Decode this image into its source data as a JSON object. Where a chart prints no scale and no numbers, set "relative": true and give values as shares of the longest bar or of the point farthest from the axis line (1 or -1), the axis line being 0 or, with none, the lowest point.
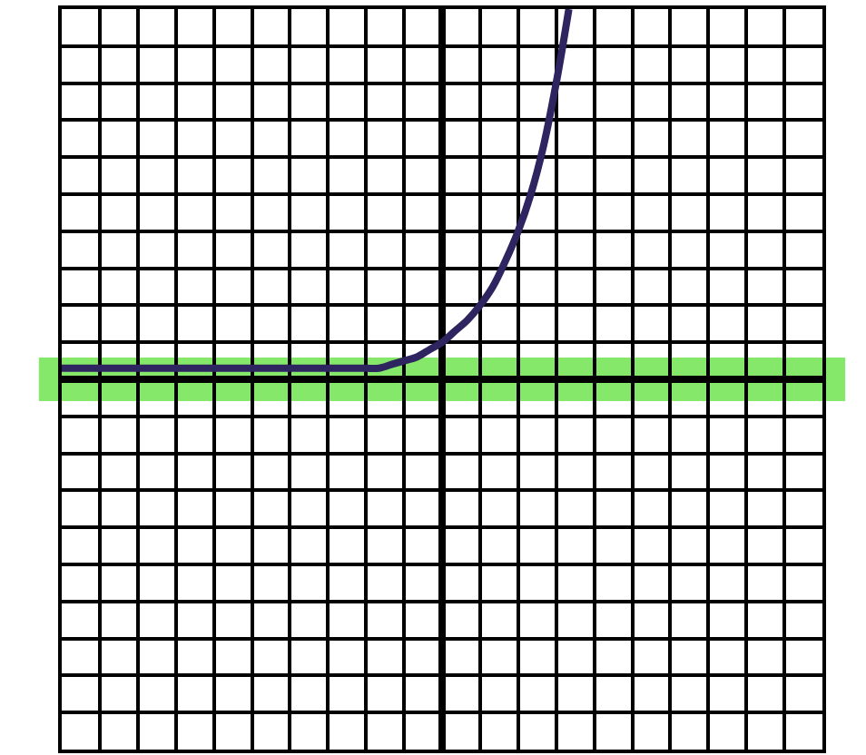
{
  "chart_data": {
    "type": "line",
    "relative": true,
    "grid": true,
    "tick_labels": false,
    "line_style": "solid",
    "categories": [
      null,
      null,
      null,
      null,
      null,
      null,
      null,
      null,
      null,
      null,
      null,
      null,
      null,
      null,
      null,
      null,
      null,
      null,
      null,
      null,
      null,
      null,
      null,
      null,
      null,
      null,
      null,
      null,
      null,
      null,
      null,
      null,
      null,
      null,
      null,
      null,
      null,
      null,
      null,
      null,
      null
    ],
    "series": [
      {
        "color": "#2e2460",
        "values": [
          0.03,
          0.03,
          0.03,
          0.03,
          0.03,
          0.03,
          0.03,
          0.03,
          0.03,
          0.03,
          0.03,
          0.03,
          0.03,
          0.03,
          0.03,
          0.03,
          0.03,
          0.03,
          0.03,
          0.03,
          0.03,
          0.03,
          0.03,
          0.03,
          0.03,
          0.03,
          0.04,
          0.05,
          0.06,
          0.08,
          0.1,
          0.13,
          0.16,
          0.2,
          0.25,
          0.32,
          0.4,
          0.5,
          0.63,
          0.8,
          1.0
        ]
      }
    ],
    "ref_lines": [
      {
        "axis": "y",
        "value": 0,
        "color": "#86e86a"
      }
    ]
  }
}
